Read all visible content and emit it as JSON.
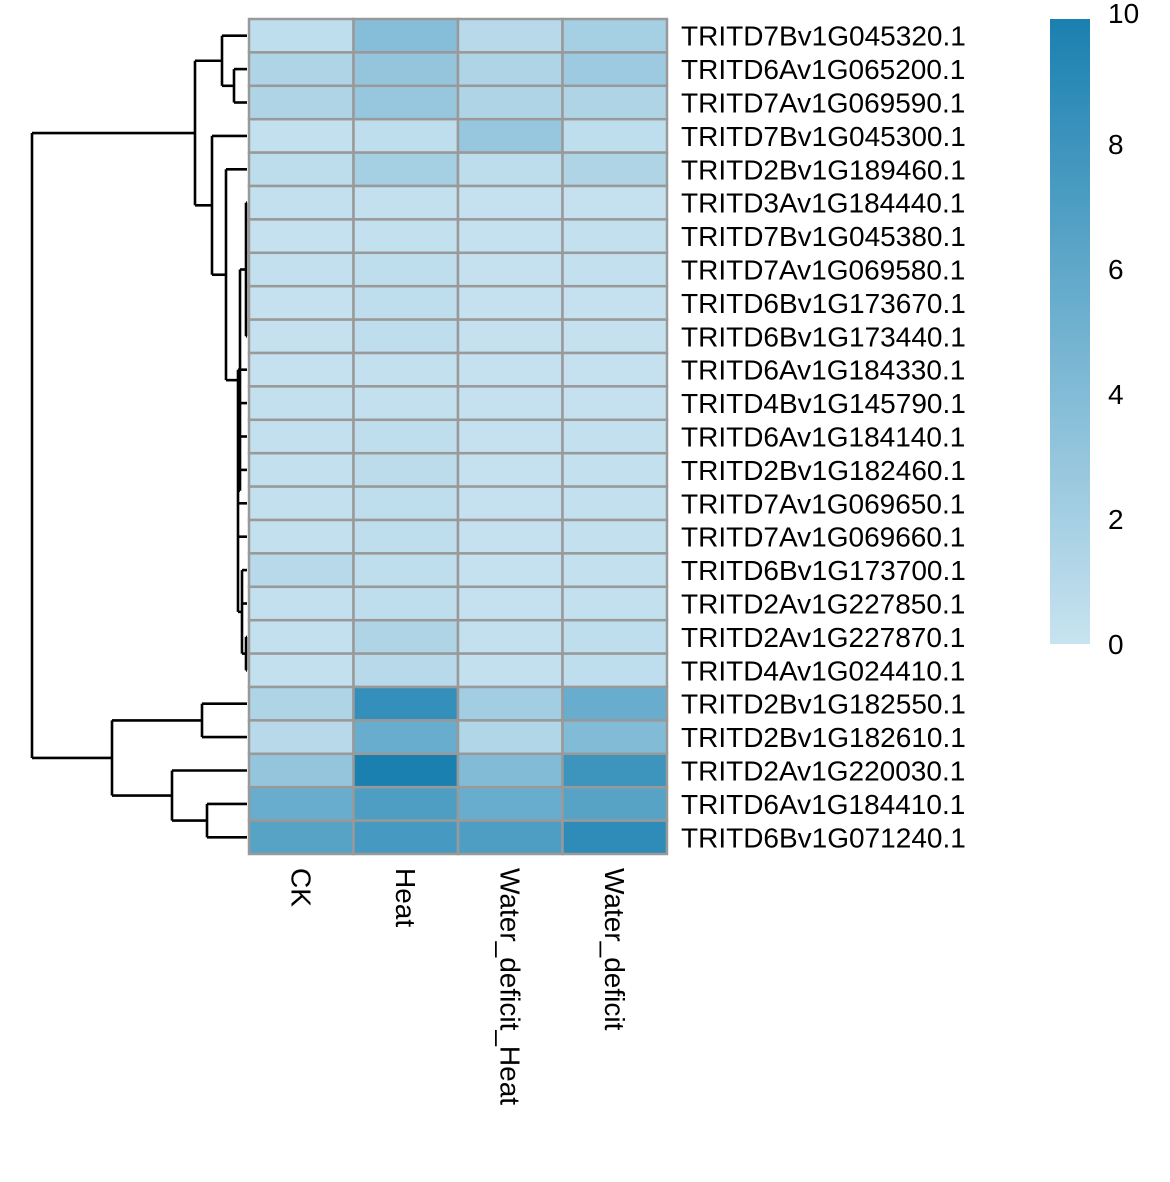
{
  "chart_data": {
    "type": "heatmap",
    "title": "",
    "columns": [
      "CK",
      "Heat",
      "Water_deficit_Heat",
      "Water_deficit"
    ],
    "rows": [
      "TRITD7Bv1G045320.1",
      "TRITD6Av1G065200.1",
      "TRITD7Av1G069590.1",
      "TRITD7Bv1G045300.1",
      "TRITD2Bv1G189460.1",
      "TRITD3Av1G184440.1",
      "TRITD7Bv1G045380.1",
      "TRITD7Av1G069580.1",
      "TRITD6Bv1G173670.1",
      "TRITD6Bv1G173440.1",
      "TRITD6Av1G184330.1",
      "TRITD4Bv1G145790.1",
      "TRITD6Av1G184140.1",
      "TRITD2Bv1G182460.1",
      "TRITD7Av1G069650.1",
      "TRITD7Av1G069660.1",
      "TRITD6Bv1G173700.1",
      "TRITD2Av1G227850.1",
      "TRITD2Av1G227870.1",
      "TRITD4Av1G024410.1",
      "TRITD2Bv1G182550.1",
      "TRITD2Bv1G182610.1",
      "TRITD2Av1G220030.1",
      "TRITD6Av1G184410.1",
      "TRITD6Bv1G071240.1"
    ],
    "values": [
      [
        0.5,
        3.8,
        1.0,
        2.0
      ],
      [
        1.5,
        3.0,
        1.5,
        2.5
      ],
      [
        1.5,
        2.8,
        1.5,
        1.5
      ],
      [
        0.3,
        0.5,
        2.8,
        0.5
      ],
      [
        0.6,
        2.0,
        0.6,
        1.5
      ],
      [
        0.3,
        0.3,
        0.2,
        0.2
      ],
      [
        0.2,
        0.3,
        0.2,
        0.3
      ],
      [
        0.3,
        0.5,
        0.2,
        0.3
      ],
      [
        0.2,
        0.5,
        0.2,
        0.2
      ],
      [
        0.2,
        0.5,
        0.2,
        0.2
      ],
      [
        0.2,
        0.3,
        0.2,
        0.2
      ],
      [
        0.3,
        0.3,
        0.2,
        0.2
      ],
      [
        0.3,
        0.5,
        0.2,
        0.3
      ],
      [
        0.3,
        0.7,
        0.2,
        0.3
      ],
      [
        0.3,
        0.5,
        0.2,
        0.3
      ],
      [
        0.3,
        0.5,
        0.2,
        0.3
      ],
      [
        1.0,
        0.5,
        0.2,
        0.3
      ],
      [
        0.3,
        0.5,
        0.2,
        0.3
      ],
      [
        0.3,
        1.5,
        0.3,
        0.5
      ],
      [
        0.3,
        1.0,
        0.3,
        0.5
      ],
      [
        1.5,
        8.5,
        2.2,
        5.5
      ],
      [
        1.0,
        5.5,
        1.3,
        4.0
      ],
      [
        3.0,
        10.0,
        4.0,
        8.0
      ],
      [
        5.5,
        7.0,
        5.5,
        6.5
      ],
      [
        6.5,
        7.5,
        7.0,
        8.8
      ]
    ],
    "color_range": [
      0,
      10
    ],
    "color_low": "#c8e3f0",
    "color_high": "#1a80b0",
    "colorbar_ticks": [
      "0",
      "2",
      "4",
      "6",
      "8",
      "10"
    ],
    "dendrogram_leaf_order": [
      0,
      1,
      2,
      3,
      4,
      5,
      6,
      7,
      8,
      9,
      10,
      11,
      12,
      13,
      14,
      15,
      16,
      17,
      18,
      19,
      20,
      21,
      22,
      23,
      24
    ],
    "cell_border_color": "#999999"
  }
}
